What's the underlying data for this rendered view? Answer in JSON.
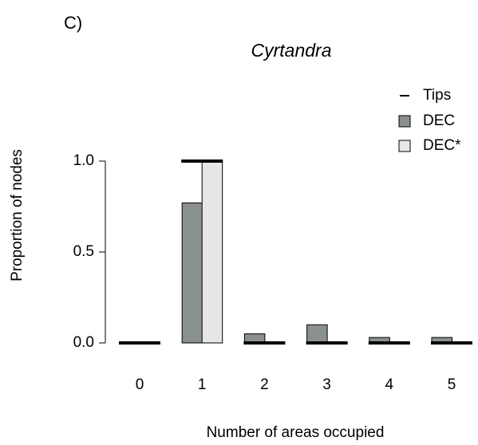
{
  "chart_data": {
    "type": "bar",
    "panel_label": "C)",
    "title": "Cyrtandra",
    "x_label": "Number of areas occupied",
    "y_label": "Proportion of nodes",
    "categories": [
      "0",
      "1",
      "2",
      "3",
      "4",
      "5"
    ],
    "series": [
      {
        "name": "Tips",
        "color": "#000000",
        "values": [
          0,
          1,
          0,
          0,
          0,
          0
        ]
      },
      {
        "name": "DEC",
        "color": "#8a908e",
        "values": [
          0,
          0.77,
          0.05,
          0.1,
          0.03,
          0.03
        ]
      },
      {
        "name": "DEC*",
        "color": "#e6e6e6",
        "values": [
          0,
          1,
          0,
          0,
          0,
          0
        ]
      }
    ],
    "ylim": [
      0,
      1
    ],
    "yticks": [
      {
        "value": 0,
        "label": "0.0"
      },
      {
        "value": 0.5,
        "label": "0.5"
      },
      {
        "value": 1,
        "label": "1.0"
      }
    ],
    "legend": "top-right"
  }
}
